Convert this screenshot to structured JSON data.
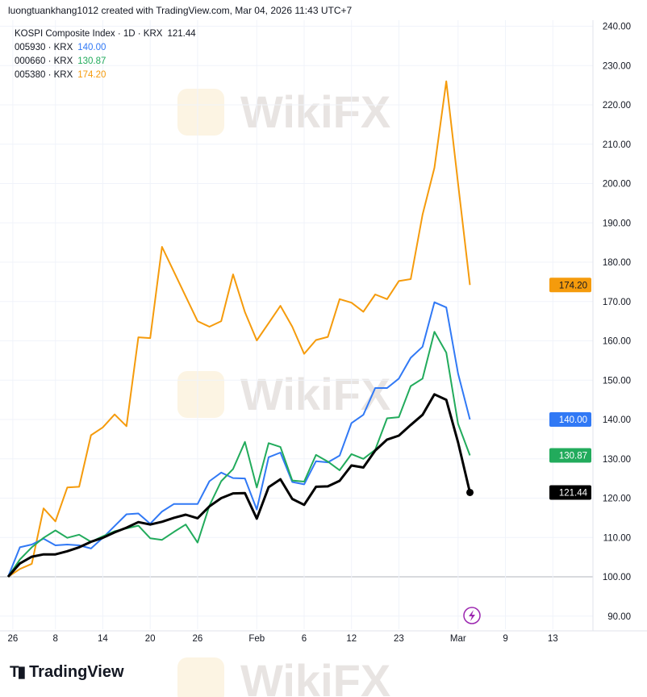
{
  "header": {
    "text": "luongtuankhang1012 created with TradingView.com, Mar 04, 2026 11:43 UTC+7"
  },
  "legend": [
    {
      "label": "KOSPI Composite Index · 1D · KRX",
      "value": "121.44",
      "color": "#131722"
    },
    {
      "label": "005930 · KRX",
      "value": "140.00",
      "color": "#3179f5"
    },
    {
      "label": "000660 · KRX",
      "value": "130.87",
      "color": "#22ab5c"
    },
    {
      "label": "005380 · KRX",
      "value": "174.20",
      "color": "#f59b0c"
    }
  ],
  "logo": {
    "text": "TradingView"
  },
  "watermark": "WikiFX",
  "icons": {
    "lightning": "lightning-icon"
  },
  "chart_data": {
    "type": "line",
    "ylim": [
      85,
      243
    ],
    "y_ticks": [
      "90.00",
      "100.00",
      "110.00",
      "120.00",
      "130.00",
      "140.00",
      "150.00",
      "160.00",
      "170.00",
      "180.00",
      "190.00",
      "200.00",
      "210.00",
      "220.00",
      "230.00",
      "240.00"
    ],
    "x_ticks": [
      {
        "label": "26",
        "index": 0.4
      },
      {
        "label": "8",
        "index": 4
      },
      {
        "label": "14",
        "index": 8
      },
      {
        "label": "20",
        "index": 12
      },
      {
        "label": "26",
        "index": 16
      },
      {
        "label": "Feb",
        "index": 21
      },
      {
        "label": "6",
        "index": 25
      },
      {
        "label": "12",
        "index": 29
      },
      {
        "label": "23",
        "index": 33
      },
      {
        "label": "Mar",
        "index": 38
      },
      {
        "label": "9",
        "index": 42
      },
      {
        "label": "13",
        "index": 46
      }
    ],
    "grid": true,
    "series": [
      {
        "name": "005380 · KRX",
        "color": "#f59b0c",
        "last": "174.20",
        "values": [
          100,
          102,
          103.3,
          117.4,
          114.1,
          122.7,
          122.9,
          136,
          138,
          141.3,
          138.3,
          160.9,
          160.7,
          183.9,
          177.6,
          171.3,
          165,
          163.6,
          165,
          176.9,
          167.3,
          160.1,
          164.5,
          168.9,
          163.6,
          156.7,
          160.2,
          161,
          170.6,
          169.7,
          167.4,
          171.8,
          170.6,
          175.2,
          175.7,
          192.1,
          204,
          226,
          200,
          174.2
        ]
      },
      {
        "name": "005930 · KRX",
        "color": "#3179f5",
        "last": "140.00",
        "values": [
          100,
          107.5,
          108.2,
          109.7,
          108,
          108.2,
          108,
          107.2,
          109.9,
          112.9,
          115.9,
          116.1,
          113.5,
          116.6,
          118.5,
          118.5,
          118.5,
          124.3,
          126.5,
          125.1,
          125,
          117.1,
          130.4,
          131.6,
          124.1,
          123.5,
          129.4,
          129.1,
          130.8,
          139.1,
          141.2,
          148,
          148,
          150.4,
          155.7,
          158.5,
          169.8,
          168.5,
          151.7,
          140
        ]
      },
      {
        "name": "000660 · KRX",
        "color": "#22ab5c",
        "last": "130.87",
        "values": [
          100,
          104.4,
          107.5,
          109.9,
          111.8,
          109.9,
          110.7,
          108.9,
          110.3,
          111.6,
          112.3,
          113,
          109.8,
          109.4,
          111.4,
          113.3,
          108.7,
          118.1,
          124.3,
          127.4,
          134.3,
          122.7,
          134,
          133,
          124.5,
          124.2,
          131,
          129.3,
          127.1,
          131.2,
          130,
          132.3,
          140.3,
          140.6,
          148.5,
          150.4,
          162.3,
          157,
          138.9,
          130.87
        ]
      },
      {
        "name": "KOSPI Composite Index · 1D · KRX",
        "color": "#000000",
        "last": "121.44",
        "values": [
          100,
          103.4,
          105.1,
          105.7,
          105.7,
          106.5,
          107.5,
          108.9,
          109.9,
          111.3,
          112.5,
          113.9,
          113.3,
          114,
          115,
          115.8,
          114.9,
          117.9,
          120,
          121.2,
          121.3,
          114.8,
          122.8,
          124.8,
          119.8,
          118.3,
          122.9,
          123,
          124.4,
          128.3,
          127.8,
          132.1,
          134.9,
          135.9,
          138.6,
          141.2,
          146.4,
          145,
          134.2,
          121.44
        ]
      }
    ]
  }
}
